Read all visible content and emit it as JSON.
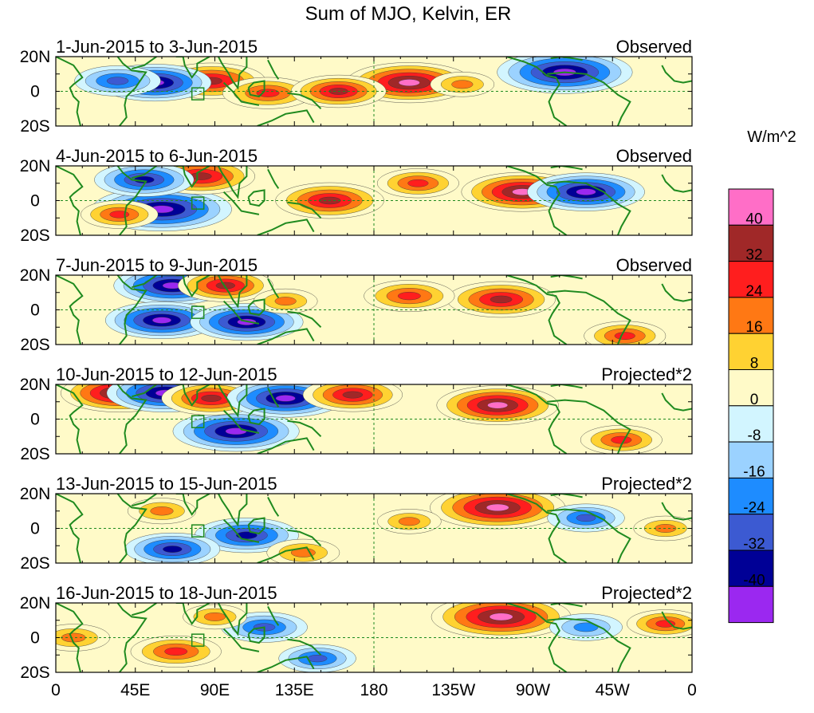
{
  "title": "Sum of MJO, Kelvin, ER",
  "panels": [
    {
      "date_range": "1-Jun-2015 to 3-Jun-2015",
      "kind": "Observed"
    },
    {
      "date_range": "4-Jun-2015 to 6-Jun-2015",
      "kind": "Observed"
    },
    {
      "date_range": "7-Jun-2015 to 9-Jun-2015",
      "kind": "Observed"
    },
    {
      "date_range": "10-Jun-2015 to 12-Jun-2015",
      "kind": "Projected*2"
    },
    {
      "date_range": "13-Jun-2015 to 15-Jun-2015",
      "kind": "Projected*2"
    },
    {
      "date_range": "16-Jun-2015 to 18-Jun-2015",
      "kind": "Projected*2"
    }
  ],
  "y_axis_labels": [
    "20N",
    "0",
    "20S"
  ],
  "x_axis_labels": [
    "0",
    "45E",
    "90E",
    "135E",
    "180",
    "135W",
    "90W",
    "45W",
    "0"
  ],
  "colorbar": {
    "unit_label": "W/m^2",
    "tick_labels": [
      "40",
      "32",
      "24",
      "16",
      "8",
      "0",
      "-8",
      "-16",
      "-24",
      "-32",
      "-40"
    ],
    "colors": [
      "#ff6ec7",
      "#a02828",
      "#ff1e1e",
      "#ff7814",
      "#ffd232",
      "#fffac8",
      "#d2f5ff",
      "#9bd2ff",
      "#1e8cff",
      "#3c5ad2",
      "#000096",
      "#9b28f0"
    ]
  },
  "chart_data": {
    "type": "heatmap",
    "title": "Sum of MJO, Kelvin, ER",
    "variable_unit": "W/m^2",
    "x_range": [
      0,
      360
    ],
    "y_range": [
      -20,
      20
    ],
    "contour_levels": [
      -40,
      -32,
      -24,
      -16,
      -8,
      0,
      8,
      16,
      24,
      32,
      40
    ],
    "panels": [
      {
        "label": "1-Jun-2015 to 3-Jun-2015",
        "kind": "Observed",
        "anomalies": [
          {
            "lon": 200,
            "lat": 5,
            "value": 38
          },
          {
            "lon": 288,
            "lat": 11,
            "value": -42
          },
          {
            "lon": 88,
            "lat": 6,
            "value": 30
          },
          {
            "lon": 120,
            "lat": -1,
            "value": 22
          },
          {
            "lon": 160,
            "lat": 0,
            "value": 24
          },
          {
            "lon": 56,
            "lat": 5,
            "value": -32
          },
          {
            "lon": 35,
            "lat": 6,
            "value": -20
          },
          {
            "lon": 230,
            "lat": 4,
            "value": 10
          }
        ]
      },
      {
        "label": "4-Jun-2015 to 6-Jun-2015",
        "kind": "Observed",
        "anomalies": [
          {
            "lon": 264,
            "lat": 5,
            "value": 36
          },
          {
            "lon": 60,
            "lat": -5,
            "value": -44
          },
          {
            "lon": 82,
            "lat": 14,
            "value": 30
          },
          {
            "lon": 155,
            "lat": 0,
            "value": 30
          },
          {
            "lon": 205,
            "lat": 10,
            "value": 18
          },
          {
            "lon": 300,
            "lat": 5,
            "value": -34
          },
          {
            "lon": 50,
            "lat": 12,
            "value": -26
          },
          {
            "lon": 36,
            "lat": -8,
            "value": 16
          }
        ]
      },
      {
        "label": "7-Jun-2015 to 9-Jun-2015",
        "kind": "Observed",
        "anomalies": [
          {
            "lon": 66,
            "lat": 14,
            "value": -34
          },
          {
            "lon": 60,
            "lat": -6,
            "value": -32
          },
          {
            "lon": 108,
            "lat": -7,
            "value": -32
          },
          {
            "lon": 96,
            "lat": 14,
            "value": 24
          },
          {
            "lon": 252,
            "lat": 6,
            "value": 30
          },
          {
            "lon": 200,
            "lat": 8,
            "value": 22
          },
          {
            "lon": 322,
            "lat": -15,
            "value": 18
          },
          {
            "lon": 130,
            "lat": 5,
            "value": 10
          }
        ]
      },
      {
        "label": "10-Jun-2015 to 12-Jun-2015",
        "kind": "Projected*2",
        "anomalies": [
          {
            "lon": 36,
            "lat": 15,
            "value": 34
          },
          {
            "lon": 62,
            "lat": 15,
            "value": -34
          },
          {
            "lon": 102,
            "lat": -7,
            "value": -38
          },
          {
            "lon": 88,
            "lat": 12,
            "value": 26
          },
          {
            "lon": 130,
            "lat": 12,
            "value": -34
          },
          {
            "lon": 168,
            "lat": 14,
            "value": 26
          },
          {
            "lon": 250,
            "lat": 8,
            "value": 36
          },
          {
            "lon": 320,
            "lat": -12,
            "value": 18
          }
        ]
      },
      {
        "label": "13-Jun-2015 to 15-Jun-2015",
        "kind": "Projected*2",
        "anomalies": [
          {
            "lon": 250,
            "lat": 12,
            "value": 42
          },
          {
            "lon": 108,
            "lat": -4,
            "value": -28
          },
          {
            "lon": 66,
            "lat": -12,
            "value": -24
          },
          {
            "lon": 60,
            "lat": 10,
            "value": 12
          },
          {
            "lon": 140,
            "lat": -14,
            "value": 14
          },
          {
            "lon": 300,
            "lat": 6,
            "value": -16
          },
          {
            "lon": 200,
            "lat": 4,
            "value": 10
          },
          {
            "lon": 345,
            "lat": 0,
            "value": 10
          }
        ]
      },
      {
        "label": "16-Jun-2015 to 18-Jun-2015",
        "kind": "Projected*2",
        "anomalies": [
          {
            "lon": 252,
            "lat": 12,
            "value": 44
          },
          {
            "lon": 68,
            "lat": -8,
            "value": 22
          },
          {
            "lon": 118,
            "lat": 6,
            "value": -20
          },
          {
            "lon": 148,
            "lat": -12,
            "value": -16
          },
          {
            "lon": 10,
            "lat": 0,
            "value": 14
          },
          {
            "lon": 90,
            "lat": 12,
            "value": 10
          },
          {
            "lon": 300,
            "lat": 6,
            "value": -14
          },
          {
            "lon": 345,
            "lat": 8,
            "value": 16
          }
        ]
      }
    ]
  }
}
